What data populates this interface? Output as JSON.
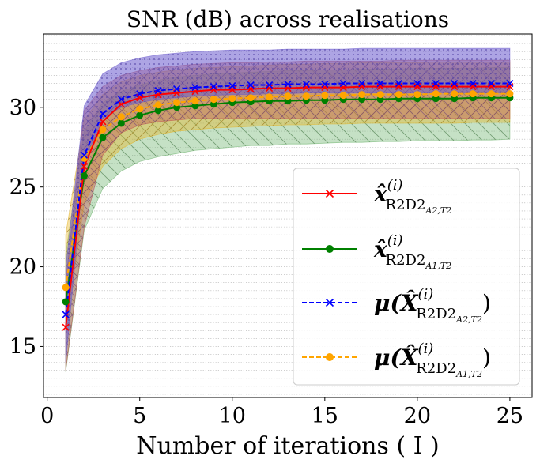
{
  "chart_data": {
    "type": "line",
    "title": "SNR (dB) across realisations",
    "xlabel": "Number of iterations ( I )",
    "ylabel": "",
    "xlim": [
      -0.2,
      26.2
    ],
    "ylim": [
      11.8,
      34.6
    ],
    "xticks": [
      0,
      5,
      10,
      15,
      20,
      25
    ],
    "yticks": [
      15,
      20,
      25,
      30
    ],
    "grid": "horizontal dotted",
    "legend_position": "center-right",
    "x": [
      1,
      2,
      3,
      4,
      5,
      6,
      7,
      8,
      9,
      10,
      11,
      12,
      13,
      14,
      15,
      16,
      17,
      18,
      19,
      20,
      21,
      22,
      23,
      24,
      25
    ],
    "series": [
      {
        "name": "x̂(i) R2D2 A2,T2",
        "legend_main": "x̂",
        "legend_sup": "(i)",
        "legend_sub": "R2D2",
        "legend_subsub": "A2,T2",
        "color": "#ff0000",
        "linestyle": "solid",
        "marker": "x",
        "values": [
          16.2,
          26.3,
          29.1,
          30.2,
          30.6,
          30.8,
          30.9,
          31.0,
          31.1,
          31.1,
          31.15,
          31.2,
          31.2,
          31.25,
          31.25,
          31.25,
          31.3,
          31.3,
          31.3,
          31.3,
          31.3,
          31.3,
          31.3,
          31.3,
          31.3
        ],
        "band_low": [
          13.5,
          22.5,
          27.0,
          28.4,
          28.9,
          29.1,
          29.2,
          29.3,
          29.3,
          29.3,
          29.3,
          29.3,
          29.3,
          29.3,
          29.3,
          29.3,
          29.3,
          29.3,
          29.3,
          29.3,
          29.3,
          29.3,
          29.3,
          29.3,
          29.3
        ],
        "band_high": [
          19.0,
          29.8,
          31.3,
          32.0,
          32.3,
          32.5,
          32.6,
          32.7,
          32.75,
          32.8,
          32.8,
          32.85,
          32.85,
          32.9,
          32.9,
          32.9,
          32.9,
          32.9,
          32.95,
          32.95,
          32.95,
          32.95,
          32.95,
          32.95,
          32.95
        ],
        "band_color": "#c0504d",
        "band_hatch": "x"
      },
      {
        "name": "x̂(i) R2D2 A1,T2",
        "legend_main": "x̂",
        "legend_sup": "(i)",
        "legend_sub": "R2D2",
        "legend_subsub": "A1,T2",
        "color": "#008000",
        "linestyle": "solid",
        "marker": "o",
        "values": [
          17.8,
          25.7,
          28.1,
          29.0,
          29.5,
          29.8,
          30.0,
          30.1,
          30.2,
          30.3,
          30.35,
          30.4,
          30.4,
          30.45,
          30.45,
          30.5,
          30.5,
          30.5,
          30.55,
          30.55,
          30.55,
          30.55,
          30.6,
          30.6,
          30.6
        ],
        "band_low": [
          13.4,
          22.3,
          24.9,
          26.0,
          26.6,
          26.9,
          27.1,
          27.3,
          27.4,
          27.5,
          27.6,
          27.6,
          27.7,
          27.7,
          27.75,
          27.8,
          27.8,
          27.85,
          27.85,
          27.9,
          27.9,
          27.9,
          27.95,
          27.95,
          28.0
        ],
        "band_high": [
          20.8,
          28.5,
          30.3,
          31.0,
          31.4,
          31.7,
          31.9,
          32.0,
          32.1,
          32.15,
          32.2,
          32.25,
          32.3,
          32.3,
          32.35,
          32.35,
          32.4,
          32.4,
          32.4,
          32.45,
          32.45,
          32.45,
          32.45,
          32.5,
          32.5
        ],
        "band_color": "#6db36d",
        "band_hatch": "\\"
      },
      {
        "name": "μ(X̂(i) R2D2 A2,T2)",
        "legend_main": "μ(X̂",
        "legend_sup": "(i)",
        "legend_sub": "R2D2",
        "legend_subsub": "A2,T2",
        "legend_close": ")",
        "color": "#0000ff",
        "linestyle": "dashed",
        "marker": "x",
        "values": [
          17.0,
          27.0,
          29.6,
          30.5,
          30.85,
          31.05,
          31.15,
          31.25,
          31.3,
          31.35,
          31.4,
          31.4,
          31.45,
          31.45,
          31.45,
          31.5,
          31.5,
          31.5,
          31.5,
          31.5,
          31.5,
          31.5,
          31.5,
          31.5,
          31.5
        ],
        "band_low": [
          14.0,
          26.5,
          29.3,
          30.0,
          30.3,
          30.5,
          30.6,
          30.7,
          30.75,
          30.8,
          30.8,
          30.85,
          30.85,
          30.9,
          30.9,
          30.9,
          30.9,
          30.9,
          30.9,
          30.9,
          30.9,
          30.9,
          30.9,
          30.9,
          30.9
        ],
        "band_high": [
          20.0,
          30.1,
          32.1,
          32.8,
          33.1,
          33.3,
          33.4,
          33.5,
          33.55,
          33.6,
          33.6,
          33.6,
          33.65,
          33.65,
          33.65,
          33.65,
          33.7,
          33.7,
          33.7,
          33.7,
          33.7,
          33.7,
          33.7,
          33.7,
          33.7
        ],
        "band_color": "#6a5acd",
        "band_hatch": "."
      },
      {
        "name": "μ(X̂(i) R2D2 A1,T2)",
        "legend_main": "μ(X̂",
        "legend_sup": "(i)",
        "legend_sub": "R2D2",
        "legend_subsub": "A1,T2",
        "legend_close": ")",
        "color": "#ffa500",
        "linestyle": "dashed",
        "marker": "o",
        "values": [
          18.7,
          26.8,
          28.6,
          29.4,
          29.9,
          30.15,
          30.3,
          30.4,
          30.5,
          30.55,
          30.6,
          30.65,
          30.7,
          30.7,
          30.75,
          30.75,
          30.8,
          30.8,
          30.8,
          30.8,
          30.85,
          30.85,
          30.85,
          30.85,
          30.85
        ],
        "band_low": [
          16.0,
          24.0,
          26.3,
          27.4,
          28.0,
          28.3,
          28.5,
          28.6,
          28.7,
          28.75,
          28.8,
          28.85,
          28.9,
          28.9,
          28.95,
          28.95,
          29.0,
          29.0,
          29.0,
          29.0,
          29.0,
          29.0,
          29.05,
          29.05,
          29.05
        ],
        "band_high": [
          22.0,
          29.2,
          30.8,
          31.6,
          32.0,
          32.2,
          32.35,
          32.45,
          32.5,
          32.55,
          32.6,
          32.65,
          32.7,
          32.7,
          32.75,
          32.75,
          32.8,
          32.8,
          32.8,
          32.8,
          32.85,
          32.85,
          32.85,
          32.85,
          32.85
        ],
        "band_color": "#e6b422",
        "band_hatch": "/"
      }
    ]
  }
}
